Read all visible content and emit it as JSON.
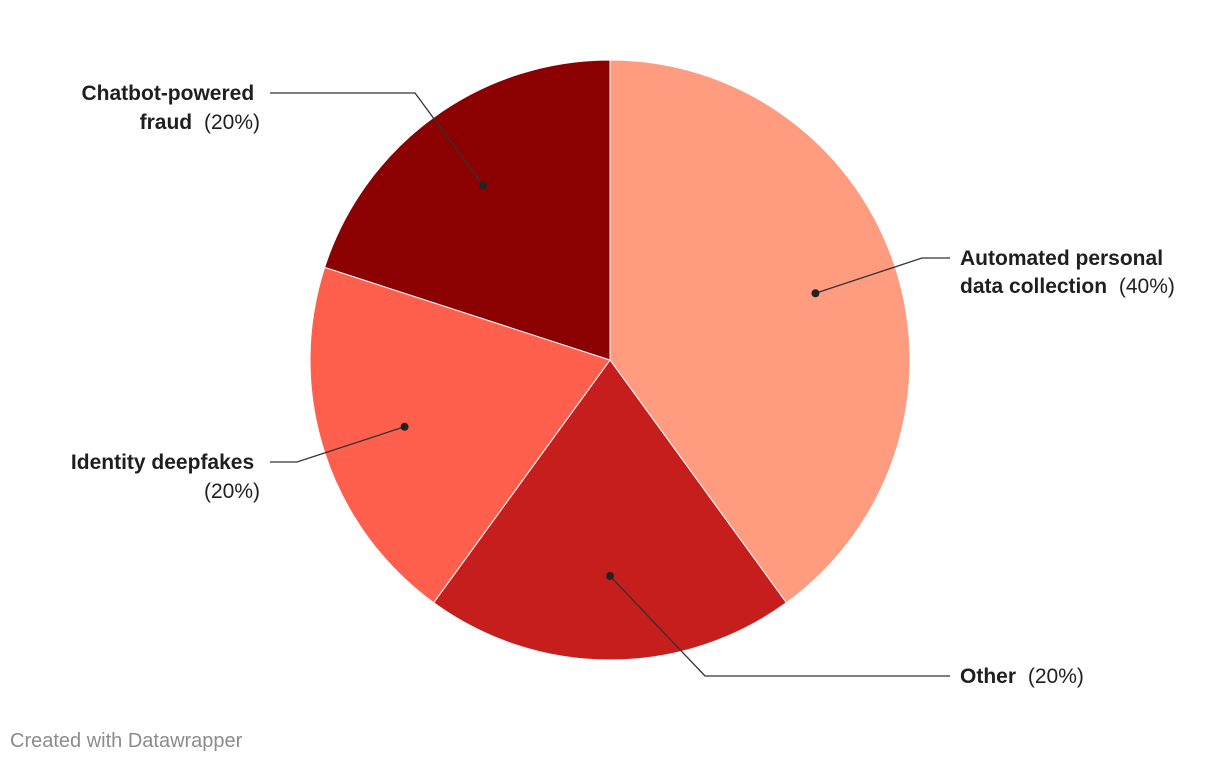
{
  "chart_data": {
    "type": "pie",
    "slices": [
      {
        "name": "Automated personal data collection",
        "label_lines": [
          "Automated personal",
          "data collection"
        ],
        "value": 40,
        "value_label": "(40%)",
        "color": "#ff9b7e"
      },
      {
        "name": "Other",
        "label_lines": [
          "Other"
        ],
        "value": 20,
        "value_label": "(20%)",
        "color": "#c61d1d"
      },
      {
        "name": "Identity deepfakes",
        "label_lines": [
          "Identity deepfakes"
        ],
        "value": 20,
        "value_label": "(20%)",
        "color": "#ff604d"
      },
      {
        "name": "Chatbot-powered fraud",
        "label_lines": [
          "Chatbot-powered",
          "fraud"
        ],
        "value": 20,
        "value_label": "(20%)",
        "color": "#8b0000"
      }
    ]
  },
  "footer": {
    "credit": "Created with Datawrapper"
  }
}
